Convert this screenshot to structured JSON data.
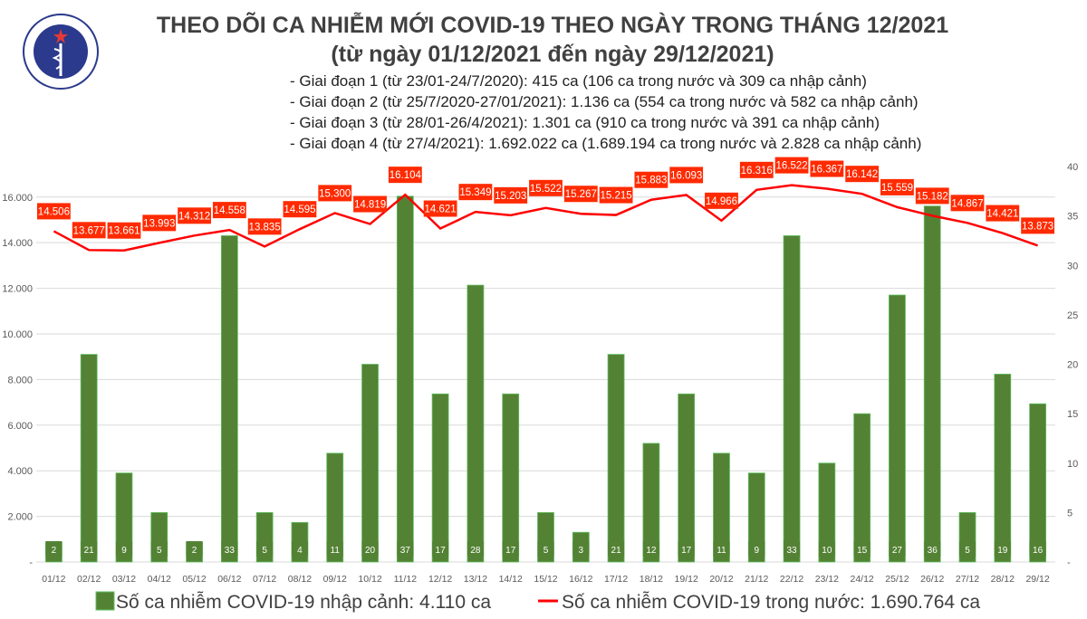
{
  "header": {
    "logo_text": "BỘ Y TẾ - MINISTRY OF HEALTH",
    "title": "THEO DÕI CA NHIỄM MỚI COVID-19 THEO NGÀY TRONG THÁNG 12/2021",
    "subtitle": "(từ ngày 01/12/2021 đến ngày 29/12/2021)",
    "notes": [
      "- Giai đoạn 1 (từ 23/01-24/7/2020): 415 ca (106 ca trong nước và 309 ca nhập cảnh)",
      "- Giai đoạn 2 (từ 25/7/2020-27/01/2021): 1.136 ca (554 ca trong nước và 582 ca nhập cảnh)",
      "- Giai đoạn 3 (từ 28/01-26/4/2021): 1.301 ca (910 ca trong nước và 391 ca nhập cảnh)",
      "- Giai đoạn 4 (từ 27/4/2021): 1.692.022 ca (1.689.194 ca trong nước và 2.828 ca nhập cảnh)"
    ]
  },
  "chart_data": {
    "type": "bar+line",
    "categories": [
      "01/12",
      "02/12",
      "03/12",
      "04/12",
      "05/12",
      "06/12",
      "07/12",
      "08/12",
      "09/12",
      "10/12",
      "11/12",
      "12/12",
      "13/12",
      "14/12",
      "15/12",
      "16/12",
      "17/12",
      "18/12",
      "19/12",
      "20/12",
      "21/12",
      "22/12",
      "23/12",
      "24/12",
      "25/12",
      "26/12",
      "27/12",
      "28/12",
      "29/12"
    ],
    "series": [
      {
        "name": "Số ca nhiễm COVID-19 nhập cảnh: 4.110 ca",
        "type": "bar",
        "axis": "right",
        "color": "#548235",
        "values": [
          2,
          21,
          9,
          5,
          2,
          33,
          5,
          4,
          11,
          20,
          37,
          17,
          28,
          17,
          5,
          3,
          21,
          12,
          17,
          11,
          9,
          33,
          10,
          15,
          27,
          36,
          5,
          19,
          16
        ]
      },
      {
        "name": "Số ca nhiễm COVID-19 trong nước: 1.690.764 ca",
        "type": "line",
        "axis": "left",
        "color": "#ff0000",
        "values": [
          14506,
          13677,
          13661,
          13993,
          14312,
          14558,
          13835,
          14595,
          15300,
          14819,
          16104,
          14621,
          15349,
          15203,
          15522,
          15267,
          15215,
          15883,
          16093,
          14966,
          16316,
          16522,
          16367,
          16142,
          15559,
          15182,
          14867,
          14421,
          13873
        ],
        "labels": [
          "14.506",
          "13.677",
          "13.661",
          "13.993",
          "14.312",
          "14.558",
          "13.835",
          "14.595",
          "15.300",
          "14.819",
          "16.104",
          "14.621",
          "15.349",
          "15.203",
          "15.522",
          "15.267",
          "15.215",
          "15.883",
          "16.093",
          "14.966",
          "16.316",
          "16.522",
          "16.367",
          "16.142",
          "15.559",
          "15.182",
          "14.867",
          "14.421",
          "13.873"
        ]
      }
    ],
    "left_axis": {
      "ticks": [
        "-",
        "2.000",
        "4.000",
        "6.000",
        "8.000",
        "10.000",
        "12.000",
        "14.000",
        "16.000"
      ],
      "tick_values": [
        0,
        2000,
        4000,
        6000,
        8000,
        10000,
        12000,
        14000,
        16000
      ],
      "ylim": [
        0,
        17340
      ]
    },
    "right_axis": {
      "ticks": [
        "-",
        "5",
        "10",
        "15",
        "20",
        "25",
        "30",
        "35",
        "40"
      ],
      "tick_values": [
        0,
        5,
        10,
        15,
        20,
        25,
        30,
        35,
        40
      ],
      "ylim": [
        0,
        40
      ]
    },
    "grid": true,
    "legend_placement": "bottom"
  }
}
